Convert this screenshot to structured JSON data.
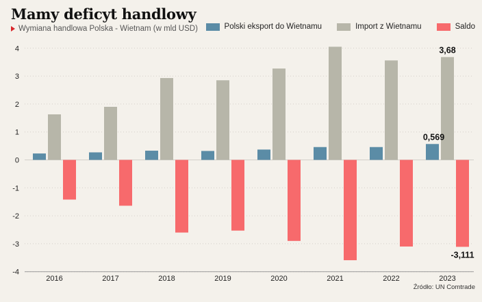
{
  "title": "Mamy deficyt handlowy",
  "subtitle": "Wymiana handlowa Polska - Wietnam (w mld USD)",
  "source": "Źródło: UN Comtrade",
  "colors": {
    "export": "#5b8ca6",
    "import": "#b7b6a9",
    "saldo": "#f76a6c",
    "background": "#f4f1eb",
    "grid": "#d3d0ca",
    "accent": "#d9262b"
  },
  "chart_data": {
    "type": "bar",
    "categories": [
      "2016",
      "2017",
      "2018",
      "2019",
      "2020",
      "2021",
      "2022",
      "2023"
    ],
    "series": [
      {
        "name": "Polski eksport do Wietnamu",
        "values": [
          0.23,
          0.27,
          0.33,
          0.32,
          0.37,
          0.46,
          0.46,
          0.569
        ]
      },
      {
        "name": "Import z Wietnamu",
        "values": [
          1.63,
          1.9,
          2.93,
          2.85,
          3.27,
          4.05,
          3.56,
          3.68
        ]
      },
      {
        "name": "Saldo",
        "values": [
          -1.42,
          -1.64,
          -2.6,
          -2.53,
          -2.9,
          -3.59,
          -3.1,
          -3.111
        ]
      }
    ],
    "yticks": [
      "4",
      "3",
      "2",
      "1",
      "0",
      "-1",
      "-2",
      "-3",
      "-4"
    ],
    "ylim": [
      -4,
      4.2
    ],
    "grid": true,
    "legend": "top-right",
    "annotations": [
      {
        "series": 0,
        "category": "2023",
        "text": "0,569"
      },
      {
        "series": 1,
        "category": "2023",
        "text": "3,68"
      },
      {
        "series": 2,
        "category": "2023",
        "text": "-3,111"
      }
    ]
  }
}
